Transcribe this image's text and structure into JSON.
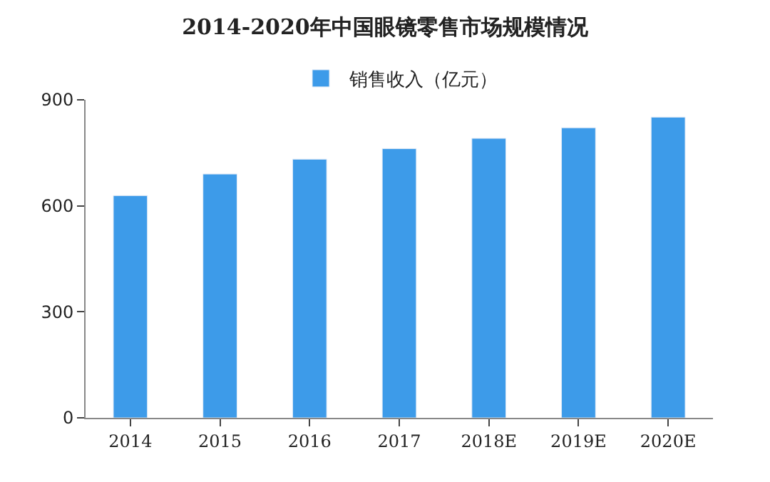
{
  "chart_data": {
    "type": "bar",
    "title": "2014-2020年中国眼镜零售市场规模情况",
    "categories": [
      "2014",
      "2015",
      "2016",
      "2017",
      "2018E",
      "2019E",
      "2020E"
    ],
    "series": [
      {
        "name": "销售收入（亿元）",
        "color": "#3d9be9",
        "values": [
          629,
          690,
          732,
          762,
          791,
          821,
          851
        ]
      }
    ],
    "ylim": [
      0,
      900
    ],
    "yticks": [
      0,
      300,
      600,
      900
    ],
    "grid": false,
    "legend": "top"
  }
}
